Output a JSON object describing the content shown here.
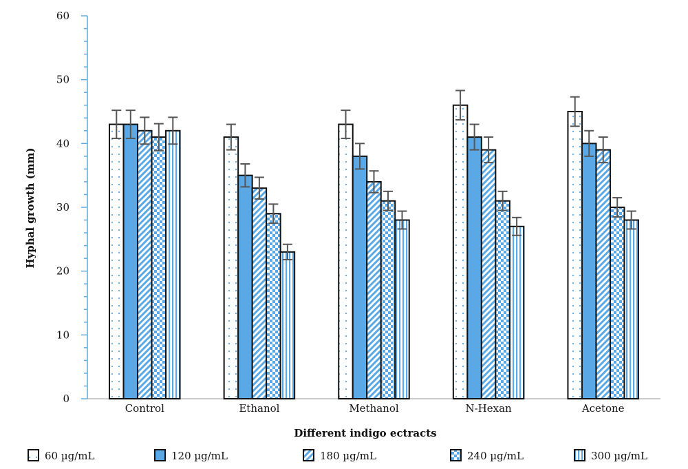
{
  "chart_data": {
    "type": "bar",
    "title": "",
    "xlabel": "Different indigo ectracts",
    "ylabel": "Hyphal growth (mm)",
    "ylim": [
      0,
      60
    ],
    "yticks": [
      "0",
      "10",
      "20",
      "30",
      "40",
      "50",
      "60"
    ],
    "categories": [
      "Control",
      "Ethanol",
      "Methanol",
      "N-Hexan",
      "Acetone"
    ],
    "series": [
      {
        "name": "60 µg/mL",
        "values": [
          43,
          41,
          43,
          46,
          45
        ],
        "errors": [
          2.2,
          2.0,
          2.2,
          2.3,
          2.3
        ],
        "pattern": "dots"
      },
      {
        "name": "120 µg/mL",
        "values": [
          43,
          35,
          38,
          41,
          40
        ],
        "errors": [
          2.2,
          1.8,
          2.0,
          2.0,
          2.0
        ],
        "pattern": "solid"
      },
      {
        "name": "180 µg/mL",
        "values": [
          42,
          33,
          34,
          39,
          39
        ],
        "errors": [
          2.1,
          1.7,
          1.7,
          2.0,
          2.0
        ],
        "pattern": "diagonal"
      },
      {
        "name": "240 µg/mL",
        "values": [
          41,
          29,
          31,
          31,
          30
        ],
        "errors": [
          2.1,
          1.5,
          1.5,
          1.5,
          1.5
        ],
        "pattern": "checker"
      },
      {
        "name": "300 µg/mL",
        "values": [
          42,
          23,
          28,
          27,
          28
        ],
        "errors": [
          2.1,
          1.2,
          1.4,
          1.4,
          1.4
        ],
        "pattern": "vertical"
      }
    ],
    "grid": false,
    "legend_position": "bottom",
    "colors": {
      "accent": "#5aa9e6",
      "axis": "#5aaee0",
      "bar_outline": "#111111",
      "error_bar": "#555555"
    }
  }
}
